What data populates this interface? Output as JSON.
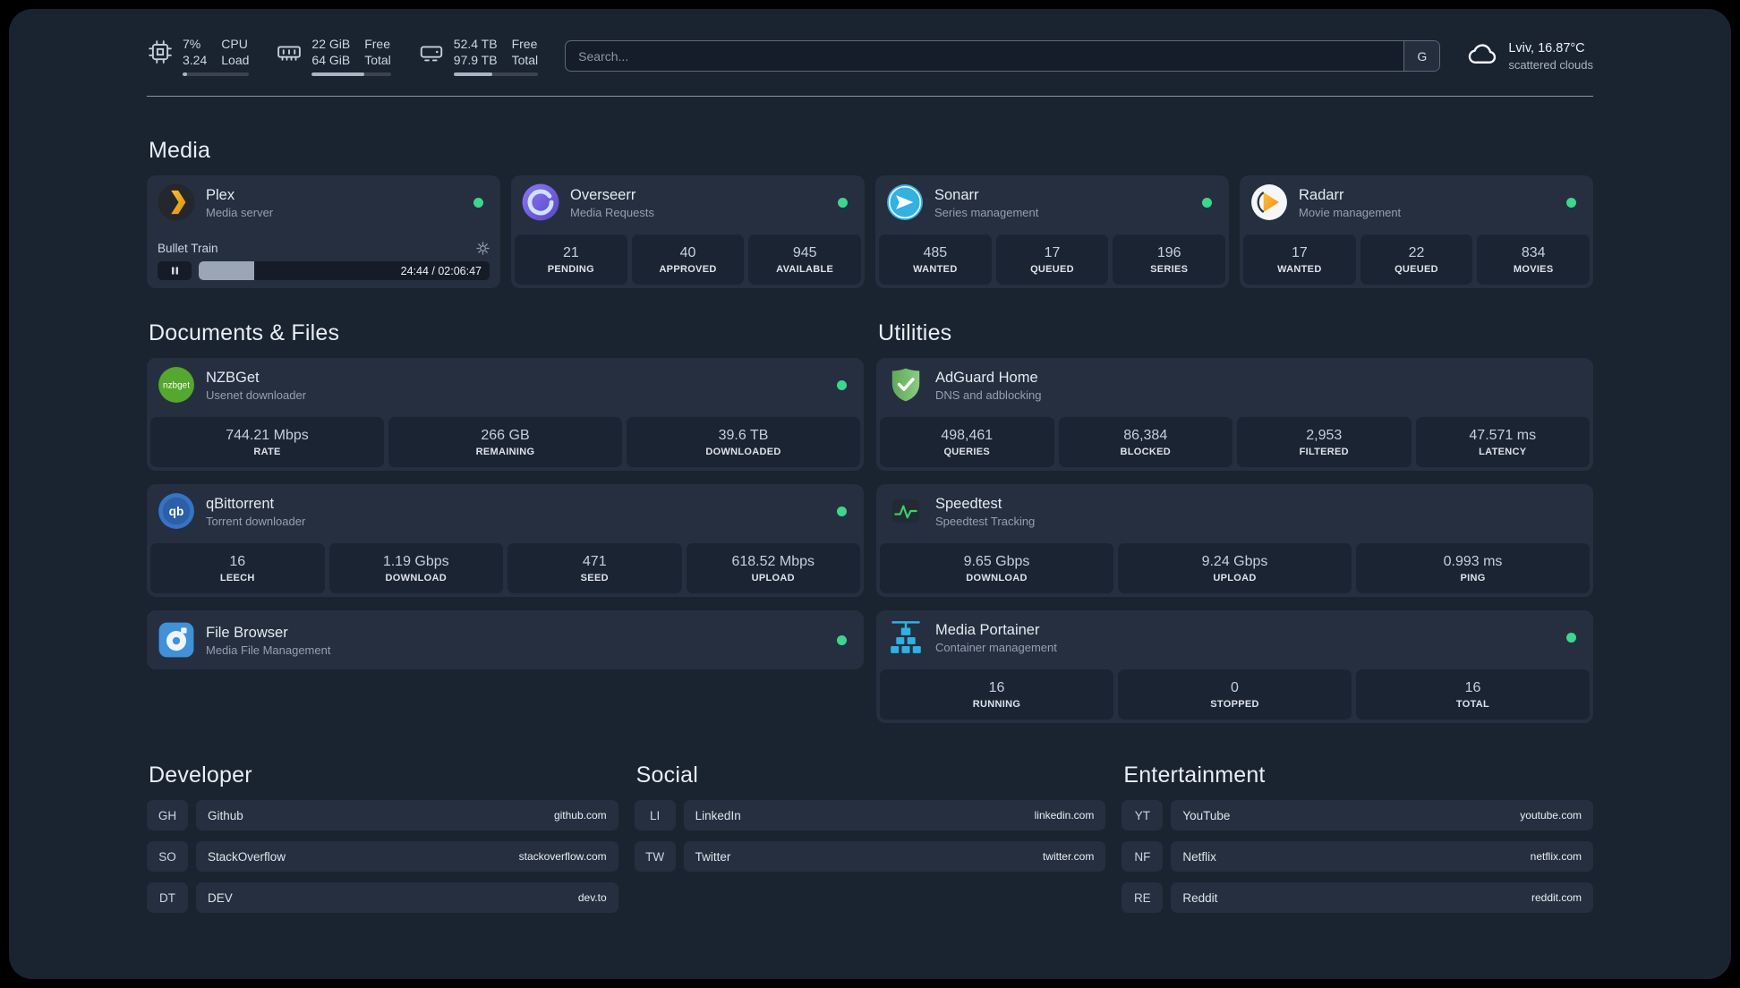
{
  "colors": {
    "status_online": "#3dd68c",
    "background": "#1a2330",
    "card": "#252f3f",
    "accent_green": "#3ecf6e"
  },
  "topbar": {
    "resources": [
      {
        "v_top": "7%",
        "v_bot": "3.24",
        "l_top": "CPU",
        "l_bot": "Load",
        "progress": 7
      },
      {
        "v_top": "22 GiB",
        "v_bot": "64 GiB",
        "l_top": "Free",
        "l_bot": "Total",
        "progress": 66
      },
      {
        "v_top": "52.4 TB",
        "v_bot": "97.9 TB",
        "l_top": "Free",
        "l_bot": "Total",
        "progress": 46
      }
    ],
    "search": {
      "placeholder": "Search...",
      "button_label": "G"
    },
    "weather": {
      "location": "Lviv, 16.87°C",
      "condition": "scattered clouds"
    }
  },
  "sections": {
    "media": "Media",
    "documents": "Documents & Files",
    "utilities": "Utilities",
    "developer": "Developer",
    "social": "Social",
    "entertainment": "Entertainment"
  },
  "services": {
    "plex": {
      "name": "Plex",
      "desc": "Media server",
      "now_playing": "Bullet Train",
      "time": "24:44 / 02:06:47",
      "progress": 19
    },
    "overseerr": {
      "name": "Overseerr",
      "desc": "Media Requests",
      "stats": [
        {
          "value": "21",
          "label": "PENDING"
        },
        {
          "value": "40",
          "label": "APPROVED"
        },
        {
          "value": "945",
          "label": "AVAILABLE"
        }
      ]
    },
    "sonarr": {
      "name": "Sonarr",
      "desc": "Series management",
      "stats": [
        {
          "value": "485",
          "label": "WANTED"
        },
        {
          "value": "17",
          "label": "QUEUED"
        },
        {
          "value": "196",
          "label": "SERIES"
        }
      ]
    },
    "radarr": {
      "name": "Radarr",
      "desc": "Movie management",
      "stats": [
        {
          "value": "17",
          "label": "WANTED"
        },
        {
          "value": "22",
          "label": "QUEUED"
        },
        {
          "value": "834",
          "label": "MOVIES"
        }
      ]
    },
    "nzbget": {
      "name": "NZBGet",
      "desc": "Usenet downloader",
      "icon_text": "nzbget",
      "stats": [
        {
          "value": "744.21 Mbps",
          "label": "RATE"
        },
        {
          "value": "266 GB",
          "label": "REMAINING"
        },
        {
          "value": "39.6 TB",
          "label": "DOWNLOADED"
        }
      ]
    },
    "qbittorrent": {
      "name": "qBittorrent",
      "desc": "Torrent downloader",
      "icon_text": "qb",
      "stats": [
        {
          "value": "16",
          "label": "LEECH"
        },
        {
          "value": "1.19 Gbps",
          "label": "DOWNLOAD"
        },
        {
          "value": "471",
          "label": "SEED"
        },
        {
          "value": "618.52 Mbps",
          "label": "UPLOAD"
        }
      ]
    },
    "filebrowser": {
      "name": "File Browser",
      "desc": "Media File Management"
    },
    "adguard": {
      "name": "AdGuard Home",
      "desc": "DNS and adblocking",
      "stats": [
        {
          "value": "498,461",
          "label": "QUERIES"
        },
        {
          "value": "86,384",
          "label": "BLOCKED"
        },
        {
          "value": "2,953",
          "label": "FILTERED"
        },
        {
          "value": "47.571 ms",
          "label": "LATENCY"
        }
      ]
    },
    "speedtest": {
      "name": "Speedtest",
      "desc": "Speedtest Tracking",
      "stats": [
        {
          "value": "9.65 Gbps",
          "label": "DOWNLOAD"
        },
        {
          "value": "9.24 Gbps",
          "label": "UPLOAD"
        },
        {
          "value": "0.993 ms",
          "label": "PING"
        }
      ]
    },
    "portainer": {
      "name": "Media Portainer",
      "desc": "Container management",
      "stats": [
        {
          "value": "16",
          "label": "RUNNING"
        },
        {
          "value": "0",
          "label": "STOPPED"
        },
        {
          "value": "16",
          "label": "TOTAL"
        }
      ]
    }
  },
  "bookmarks": {
    "developer": [
      {
        "abbr": "GH",
        "name": "Github",
        "url": "github.com"
      },
      {
        "abbr": "SO",
        "name": "StackOverflow",
        "url": "stackoverflow.com"
      },
      {
        "abbr": "DT",
        "name": "DEV",
        "url": "dev.to"
      }
    ],
    "social": [
      {
        "abbr": "LI",
        "name": "LinkedIn",
        "url": "linkedin.com"
      },
      {
        "abbr": "TW",
        "name": "Twitter",
        "url": "twitter.com"
      }
    ],
    "entertainment": [
      {
        "abbr": "YT",
        "name": "YouTube",
        "url": "youtube.com"
      },
      {
        "abbr": "NF",
        "name": "Netflix",
        "url": "netflix.com"
      },
      {
        "abbr": "RE",
        "name": "Reddit",
        "url": "reddit.com"
      }
    ]
  }
}
